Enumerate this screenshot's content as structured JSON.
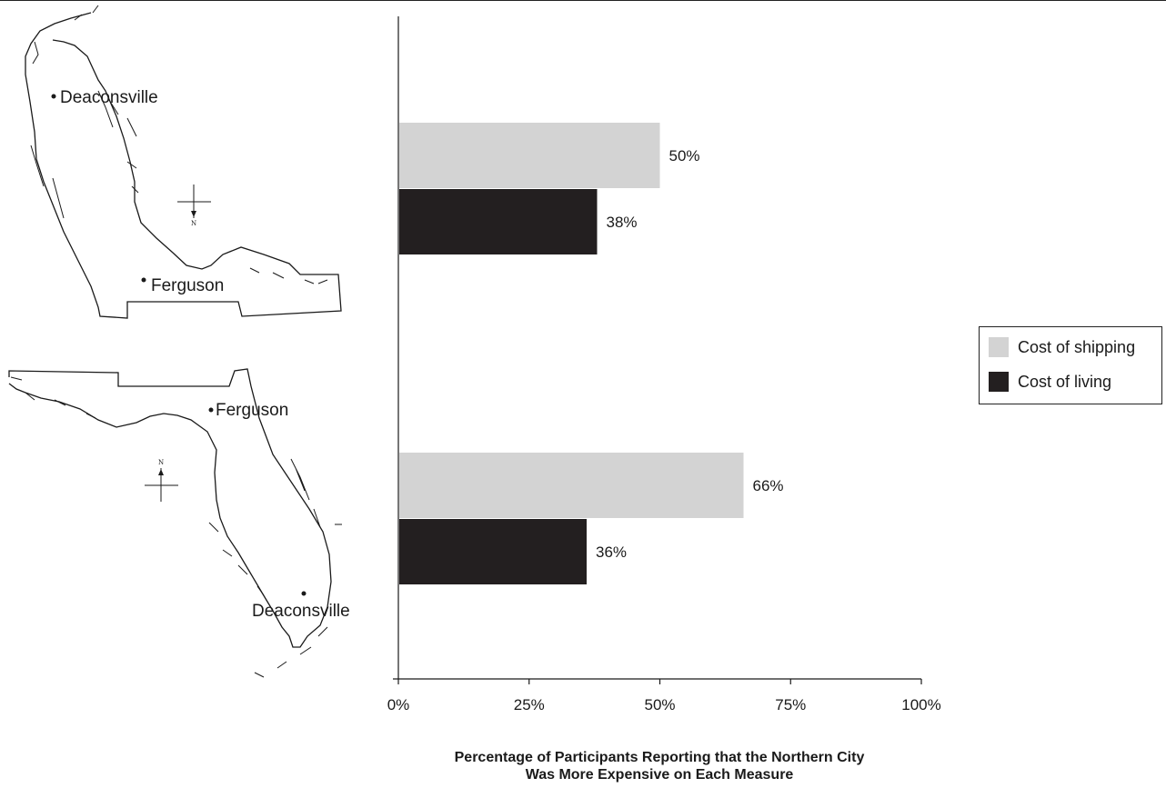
{
  "maps": {
    "upper": {
      "cities": [
        {
          "name": "Deaconsville"
        },
        {
          "name": "Ferguson"
        }
      ],
      "compass_letter": "N"
    },
    "lower": {
      "cities": [
        {
          "name": "Ferguson"
        },
        {
          "name": "Deaconsville"
        }
      ],
      "compass_letter": "N"
    }
  },
  "chart_data": {
    "type": "bar",
    "orientation": "horizontal",
    "categories": [
      "",
      ""
    ],
    "series": [
      {
        "name": "Cost of shipping",
        "values": [
          50,
          66
        ],
        "color": "#d3d3d3"
      },
      {
        "name": "Cost of living",
        "values": [
          38,
          36
        ],
        "color": "#231f20"
      }
    ],
    "value_labels": [
      [
        "50%",
        "66%"
      ],
      [
        "38%",
        "36%"
      ]
    ],
    "xlim": [
      0,
      100
    ],
    "x_ticks": [
      "0%",
      "25%",
      "50%",
      "75%",
      "100%"
    ],
    "xlabel_line1": "Percentage of Participants Reporting that the Northern City",
    "xlabel_line2": "Was More Expensive on Each Measure",
    "legend_position": "right",
    "grid": false
  }
}
